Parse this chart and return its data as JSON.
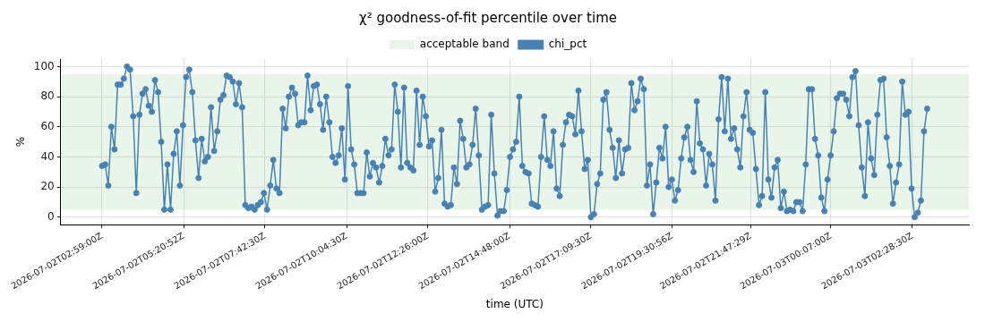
{
  "chart_data": {
    "type": "line",
    "title": "χ² goodness-of-fit percentile over time",
    "xlabel": "time (UTC)",
    "ylabel": "%",
    "x": [
      "2026-07-02T02:59:00",
      "2026-07-02T03:04:25",
      "2026-07-02T03:09:50",
      "2026-07-02T03:15:15",
      "2026-07-02T03:20:40",
      "2026-07-02T03:26:05",
      "2026-07-02T03:31:30",
      "2026-07-02T03:36:55",
      "2026-07-02T03:42:20",
      "2026-07-02T03:47:45",
      "2026-07-02T03:53:10",
      "2026-07-02T03:58:35",
      "2026-07-02T04:04:00",
      "2026-07-02T04:09:25",
      "2026-07-02T04:14:50",
      "2026-07-02T04:20:15",
      "2026-07-02T04:25:40",
      "2026-07-02T04:31:05",
      "2026-07-02T04:36:30",
      "2026-07-02T04:41:55",
      "2026-07-02T04:47:20",
      "2026-07-02T04:52:45",
      "2026-07-02T04:58:10",
      "2026-07-02T05:03:35",
      "2026-07-02T05:09:00",
      "2026-07-02T05:14:25",
      "2026-07-02T05:19:50",
      "2026-07-02T05:25:15",
      "2026-07-02T05:30:40",
      "2026-07-02T05:36:05",
      "2026-07-02T05:41:30",
      "2026-07-02T05:46:55",
      "2026-07-02T05:52:20",
      "2026-07-02T05:57:45",
      "2026-07-02T06:03:10",
      "2026-07-02T06:08:35",
      "2026-07-02T06:14:00",
      "2026-07-02T06:19:25",
      "2026-07-02T06:24:50",
      "2026-07-02T06:30:15",
      "2026-07-02T06:35:40",
      "2026-07-02T06:41:05",
      "2026-07-02T06:46:30",
      "2026-07-02T06:51:55",
      "2026-07-02T06:57:20",
      "2026-07-02T07:02:45",
      "2026-07-02T07:08:10",
      "2026-07-02T07:13:35",
      "2026-07-02T07:19:00",
      "2026-07-02T07:24:25",
      "2026-07-02T07:29:50",
      "2026-07-02T07:35:15",
      "2026-07-02T07:40:40",
      "2026-07-02T07:46:05",
      "2026-07-02T07:51:30",
      "2026-07-02T07:56:55",
      "2026-07-02T08:02:20",
      "2026-07-02T08:07:45",
      "2026-07-02T08:13:10",
      "2026-07-02T08:18:35",
      "2026-07-02T08:24:00",
      "2026-07-02T08:29:25",
      "2026-07-02T08:34:50",
      "2026-07-02T08:40:15",
      "2026-07-02T08:45:40",
      "2026-07-02T08:51:05",
      "2026-07-02T08:56:30",
      "2026-07-02T09:01:55",
      "2026-07-02T09:07:20",
      "2026-07-02T09:12:45",
      "2026-07-02T09:18:10",
      "2026-07-02T09:23:35",
      "2026-07-02T09:29:00",
      "2026-07-02T09:34:25",
      "2026-07-02T09:39:50",
      "2026-07-02T09:45:15",
      "2026-07-02T09:50:40",
      "2026-07-02T09:56:05",
      "2026-07-02T10:01:30",
      "2026-07-02T10:06:55",
      "2026-07-02T10:12:20",
      "2026-07-02T10:17:45",
      "2026-07-02T10:23:10",
      "2026-07-02T10:28:35",
      "2026-07-02T10:34:00",
      "2026-07-02T10:39:25",
      "2026-07-02T10:44:50",
      "2026-07-02T10:50:15",
      "2026-07-02T10:55:40",
      "2026-07-02T11:01:05",
      "2026-07-02T11:06:30",
      "2026-07-02T11:11:55",
      "2026-07-02T11:17:20",
      "2026-07-02T11:22:45",
      "2026-07-02T11:28:10",
      "2026-07-02T11:33:35",
      "2026-07-02T11:39:00",
      "2026-07-02T11:44:25",
      "2026-07-02T11:49:50",
      "2026-07-02T11:55:15",
      "2026-07-02T12:00:40",
      "2026-07-02T12:06:05",
      "2026-07-02T12:11:30",
      "2026-07-02T12:16:55",
      "2026-07-02T12:22:20",
      "2026-07-02T12:27:45",
      "2026-07-02T12:33:10",
      "2026-07-02T12:38:35",
      "2026-07-02T12:44:00",
      "2026-07-02T12:49:25",
      "2026-07-02T12:54:50",
      "2026-07-02T13:00:15",
      "2026-07-02T13:05:40",
      "2026-07-02T13:11:05",
      "2026-07-02T13:16:30",
      "2026-07-02T13:21:55",
      "2026-07-02T13:27:20",
      "2026-07-02T13:32:45",
      "2026-07-02T13:38:10",
      "2026-07-02T13:43:35",
      "2026-07-02T13:49:00",
      "2026-07-02T13:54:25",
      "2026-07-02T13:59:50",
      "2026-07-02T14:05:15",
      "2026-07-02T14:10:40",
      "2026-07-02T14:16:05",
      "2026-07-02T14:21:30",
      "2026-07-02T14:26:55",
      "2026-07-02T14:32:20",
      "2026-07-02T14:37:45",
      "2026-07-02T14:43:10",
      "2026-07-02T14:48:35",
      "2026-07-02T14:54:00",
      "2026-07-02T14:59:25",
      "2026-07-02T15:04:50",
      "2026-07-02T15:10:15",
      "2026-07-02T15:15:40",
      "2026-07-02T15:21:05",
      "2026-07-02T15:26:30",
      "2026-07-02T15:31:55",
      "2026-07-02T15:37:20",
      "2026-07-02T15:42:45",
      "2026-07-02T15:48:10",
      "2026-07-02T15:53:35",
      "2026-07-02T15:59:00",
      "2026-07-02T16:04:25",
      "2026-07-02T16:09:50",
      "2026-07-02T16:15:15",
      "2026-07-02T16:20:40",
      "2026-07-02T16:26:05",
      "2026-07-02T16:31:30",
      "2026-07-02T16:36:55",
      "2026-07-02T16:42:20",
      "2026-07-02T16:47:45",
      "2026-07-02T16:53:10",
      "2026-07-02T16:58:35",
      "2026-07-02T17:04:00",
      "2026-07-02T17:09:25",
      "2026-07-02T17:14:50",
      "2026-07-02T17:20:15",
      "2026-07-02T17:25:40",
      "2026-07-02T17:31:05",
      "2026-07-02T17:36:30",
      "2026-07-02T17:41:55",
      "2026-07-02T17:47:20",
      "2026-07-02T17:52:45",
      "2026-07-02T17:58:10",
      "2026-07-02T18:03:35",
      "2026-07-02T18:09:00",
      "2026-07-02T18:14:25",
      "2026-07-02T18:19:50",
      "2026-07-02T18:25:15",
      "2026-07-02T18:30:40",
      "2026-07-02T18:36:05",
      "2026-07-02T18:41:30",
      "2026-07-02T18:46:55",
      "2026-07-02T18:52:20",
      "2026-07-02T18:57:45",
      "2026-07-02T19:03:10",
      "2026-07-02T19:08:35",
      "2026-07-02T19:14:00",
      "2026-07-02T19:19:25",
      "2026-07-02T19:24:50",
      "2026-07-02T19:30:15",
      "2026-07-02T19:35:40",
      "2026-07-02T19:41:05",
      "2026-07-02T19:46:30",
      "2026-07-02T19:51:55",
      "2026-07-02T19:57:20",
      "2026-07-02T20:02:45",
      "2026-07-02T20:08:10",
      "2026-07-02T20:13:35",
      "2026-07-02T20:19:00",
      "2026-07-02T20:24:25",
      "2026-07-02T20:29:50",
      "2026-07-02T20:35:15",
      "2026-07-02T20:40:40",
      "2026-07-02T20:46:05",
      "2026-07-02T20:51:30",
      "2026-07-02T20:56:55",
      "2026-07-02T21:02:20",
      "2026-07-02T21:07:45",
      "2026-07-02T21:13:10",
      "2026-07-02T21:18:35",
      "2026-07-02T21:24:00",
      "2026-07-02T21:29:25",
      "2026-07-02T21:34:50",
      "2026-07-02T21:40:15",
      "2026-07-02T21:45:40",
      "2026-07-02T21:51:05",
      "2026-07-02T21:56:30",
      "2026-07-02T22:01:55",
      "2026-07-02T22:07:20",
      "2026-07-02T22:12:45",
      "2026-07-02T22:18:10",
      "2026-07-02T22:23:35",
      "2026-07-02T22:29:00",
      "2026-07-02T22:34:25",
      "2026-07-02T22:39:50",
      "2026-07-02T22:45:15",
      "2026-07-02T22:50:40",
      "2026-07-02T22:56:05",
      "2026-07-02T23:01:30",
      "2026-07-02T23:06:55",
      "2026-07-02T23:12:20",
      "2026-07-02T23:17:45",
      "2026-07-02T23:23:10",
      "2026-07-02T23:28:35",
      "2026-07-02T23:34:00",
      "2026-07-02T23:39:25",
      "2026-07-02T23:44:50",
      "2026-07-02T23:50:15",
      "2026-07-02T23:55:40",
      "2026-07-03T00:01:05",
      "2026-07-03T00:06:30",
      "2026-07-03T00:11:55",
      "2026-07-03T00:17:20",
      "2026-07-03T00:22:45",
      "2026-07-03T00:28:10",
      "2026-07-03T00:33:35",
      "2026-07-03T00:39:00",
      "2026-07-03T00:44:25",
      "2026-07-03T00:49:50",
      "2026-07-03T00:55:15",
      "2026-07-03T01:00:40",
      "2026-07-03T01:06:05",
      "2026-07-03T01:11:30",
      "2026-07-03T01:16:55",
      "2026-07-03T01:22:20",
      "2026-07-03T01:27:45",
      "2026-07-03T01:33:10",
      "2026-07-03T01:38:35",
      "2026-07-03T01:44:00",
      "2026-07-03T01:49:25",
      "2026-07-03T01:54:50",
      "2026-07-03T02:00:15",
      "2026-07-03T02:05:40",
      "2026-07-03T02:11:05",
      "2026-07-03T02:16:30",
      "2026-07-03T02:21:55",
      "2026-07-03T02:27:20",
      "2026-07-03T02:32:45",
      "2026-07-03T02:38:10",
      "2026-07-03T02:43:35",
      "2026-07-03T02:49:00",
      "2026-07-03T02:54:25"
    ],
    "series": [
      {
        "name": "chi_pct",
        "color": "#4682b4",
        "values": [
          34,
          35,
          21,
          60,
          45,
          88,
          88,
          92,
          100,
          98,
          67,
          16,
          68,
          82,
          85,
          74,
          70,
          91,
          83,
          50,
          5,
          35,
          5,
          42,
          57,
          21,
          61,
          93,
          98,
          83,
          51,
          26,
          52,
          37,
          40,
          73,
          44,
          57,
          78,
          81,
          94,
          93,
          90,
          75,
          89,
          73,
          8,
          6,
          7,
          5,
          8,
          10,
          16,
          5,
          21,
          38,
          19,
          16,
          72,
          59,
          80,
          86,
          82,
          61,
          63,
          63,
          94,
          71,
          87,
          88,
          75,
          58,
          80,
          63,
          40,
          36,
          41,
          59,
          25,
          87,
          45,
          35,
          16,
          16,
          16,
          43,
          27,
          36,
          33,
          23,
          34,
          52,
          41,
          45,
          88,
          70,
          33,
          86,
          36,
          33,
          31,
          84,
          48,
          80,
          67,
          47,
          51,
          17,
          26,
          58,
          9,
          7,
          8,
          33,
          22,
          64,
          52,
          33,
          35,
          48,
          72,
          41,
          5,
          7,
          8,
          68,
          29,
          1,
          4,
          4,
          18,
          40,
          45,
          50,
          80,
          34,
          30,
          29,
          9,
          8,
          7,
          40,
          67,
          38,
          34,
          57,
          19,
          14,
          48,
          63,
          68,
          67,
          55,
          84,
          57,
          32,
          38,
          0,
          2,
          22,
          29,
          78,
          83,
          58,
          46,
          26,
          51,
          29,
          45,
          46,
          89,
          71,
          77,
          92,
          85,
          21,
          35,
          2,
          23,
          46,
          39,
          60,
          20,
          25,
          11,
          18,
          39,
          53,
          60,
          38,
          30,
          77,
          49,
          45,
          21,
          42,
          35,
          11,
          65,
          93,
          57,
          92,
          52,
          59,
          45,
          33,
          67,
          83,
          58,
          56,
          32,
          8,
          14,
          83,
          25,
          13,
          33,
          38,
          6,
          17,
          4,
          5,
          4,
          10,
          10,
          4,
          35,
          85,
          85,
          52,
          41,
          13,
          4,
          25,
          41,
          57,
          79,
          82,
          82,
          78,
          67,
          93,
          97,
          61,
          33,
          14,
          63,
          39,
          28,
          68,
          91,
          92,
          53,
          34,
          9,
          23,
          35,
          90,
          68,
          70,
          19,
          0,
          3,
          11,
          57,
          72
        ]
      }
    ],
    "bands": [
      {
        "axis": "y",
        "from": 5,
        "to": 95,
        "label": "acceptable band",
        "color": "#2ca02c"
      }
    ],
    "xlim": [
      "2026-07-02T01:47",
      "2026-07-03T04:07"
    ],
    "xticks": [
      {
        "value": "2026-07-02T02:59:00",
        "label": "2026-07-02T02:59:00Z"
      },
      {
        "value": "2026-07-02T05:20:52",
        "label": "2026-07-02T05:20:52Z"
      },
      {
        "value": "2026-07-02T07:42:30",
        "label": "2026-07-02T07:42:30Z"
      },
      {
        "value": "2026-07-02T10:04:30",
        "label": "2026-07-02T10:04:30Z"
      },
      {
        "value": "2026-07-02T12:26:00",
        "label": "2026-07-02T12:26:00Z"
      },
      {
        "value": "2026-07-02T14:48:00",
        "label": "2026-07-02T14:48:00Z"
      },
      {
        "value": "2026-07-02T17:09:30",
        "label": "2026-07-02T17:09:30Z"
      },
      {
        "value": "2026-07-02T19:30:56",
        "label": "2026-07-02T19:30:56Z"
      },
      {
        "value": "2026-07-02T21:47:29",
        "label": "2026-07-02T21:47:29Z"
      },
      {
        "value": "2026-07-03T00:07:00",
        "label": "2026-07-03T00:07:00Z"
      },
      {
        "value": "2026-07-03T02:28:30",
        "label": "2026-07-03T02:28:30Z"
      }
    ],
    "ylim": [
      -5,
      105
    ],
    "yticks": [
      0,
      20,
      40,
      60,
      80,
      100
    ],
    "grid": true,
    "legend": "top",
    "marker": "circle",
    "line_style": "solid"
  }
}
